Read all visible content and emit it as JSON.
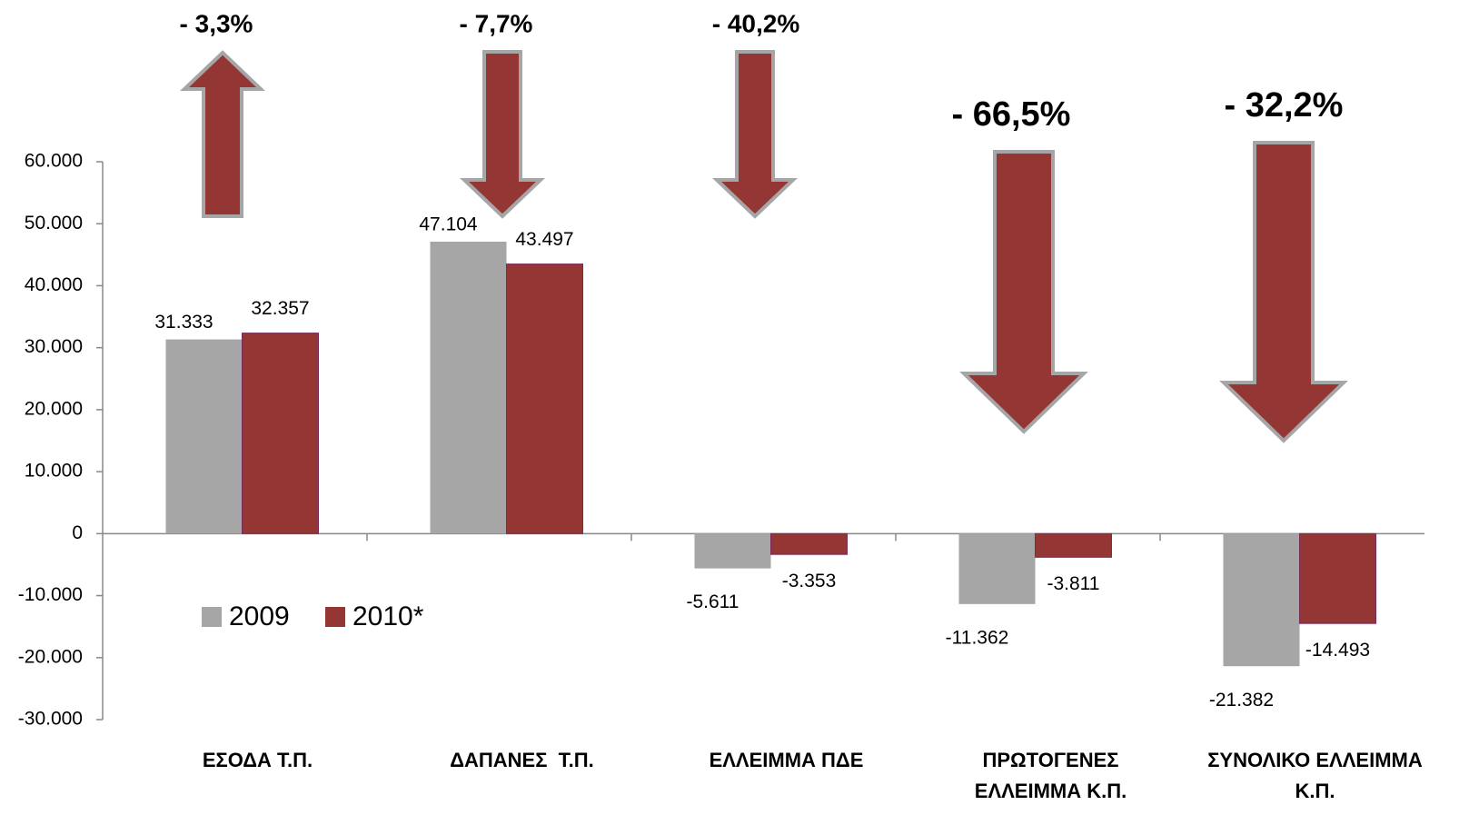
{
  "chart_data": {
    "type": "bar",
    "categories": [
      [
        "ΕΣΟΔΑ Τ.Π."
      ],
      [
        "ΔΑΠΑΝΕΣ  Τ.Π."
      ],
      [
        "ΕΛΛΕΙΜΜΑ ΠΔΕ"
      ],
      [
        "ΠΡΩΤΟΓΕΝΕΣ",
        "ΕΛΛΕΙΜΜΑ Κ.Π."
      ],
      [
        "ΣΥΝΟΛΙΚΟ ΕΛΛΕΙΜΜΑ",
        "Κ.Π."
      ]
    ],
    "series": [
      {
        "name": "2009",
        "color": "#a6a6a6",
        "values": [
          31333,
          47104,
          -5611,
          -11362,
          -21382
        ],
        "value_labels": [
          "31.333",
          "47.104",
          "-5.611",
          "-11.362",
          "-21.382"
        ]
      },
      {
        "name": "2010*",
        "color": "#943634",
        "values": [
          32357,
          43497,
          -3353,
          -3811,
          -14493
        ],
        "value_labels": [
          "32.357",
          "43.497",
          "-3.353",
          "-3.811",
          "-14.493"
        ]
      }
    ],
    "ylim": [
      -30000,
      60000
    ],
    "yticks": [
      {
        "value": -30000,
        "label": "-30.000"
      },
      {
        "value": -20000,
        "label": "-20.000"
      },
      {
        "value": -10000,
        "label": "-10.000"
      },
      0,
      {
        "value": 10000,
        "label": "10.000"
      },
      {
        "value": 20000,
        "label": "20.000"
      },
      {
        "value": 30000,
        "label": "30.000"
      },
      {
        "value": 40000,
        "label": "40.000"
      },
      {
        "value": 50000,
        "label": "50.000"
      },
      {
        "value": 60000,
        "label": "60.000"
      }
    ],
    "annotations": [
      {
        "text": "- 3,3%",
        "direction": "up"
      },
      {
        "text": "- 7,7%",
        "direction": "down"
      },
      {
        "text": "- 40,2%",
        "direction": "down"
      },
      {
        "text": "- 66,5%",
        "direction": "down"
      },
      {
        "text": "- 32,2%",
        "direction": "down"
      }
    ],
    "legend": "lower-left"
  }
}
